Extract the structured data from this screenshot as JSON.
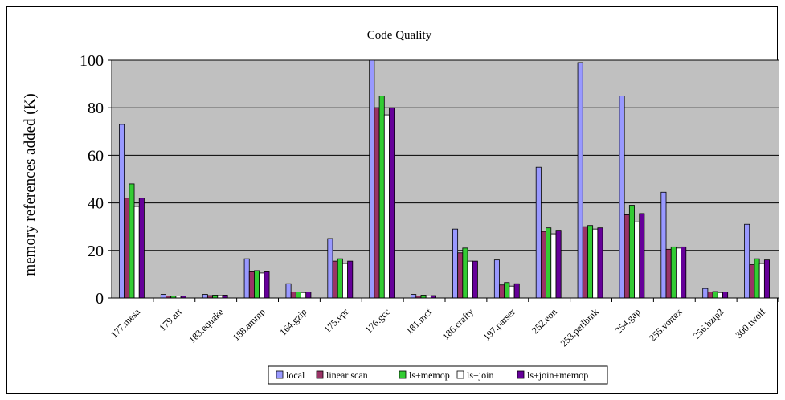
{
  "chart_data": {
    "type": "bar",
    "title": "Code Quality",
    "xlabel": "",
    "ylabel": "memory references added (K)",
    "ylim": [
      0,
      100
    ],
    "yticks": [
      0,
      20,
      40,
      60,
      80,
      100
    ],
    "grid": "horizontal",
    "legend_position": "bottom",
    "categories": [
      "177.mesa",
      "179.art",
      "183.equake",
      "188.ammp",
      "164.gzip",
      "175.vpr",
      "176.gcc",
      "181.mcf",
      "186.crafty",
      "197.parser",
      "252.eon",
      "253.perlbmk",
      "254.gap",
      "255.vortex",
      "256.bzip2",
      "300.twolf"
    ],
    "series": [
      {
        "name": "local",
        "color": "#9999FF",
        "values": [
          73,
          1.5,
          1.5,
          16.5,
          6,
          25,
          101,
          1.5,
          29,
          16,
          55,
          99,
          85,
          44.5,
          4,
          31
        ]
      },
      {
        "name": "linear scan",
        "color": "#993366",
        "values": [
          42,
          0.8,
          1,
          11,
          2.5,
          15.5,
          80,
          0.8,
          19,
          5.5,
          28,
          30,
          35,
          20.5,
          2.5,
          14
        ]
      },
      {
        "name": "ls+memop",
        "color": "#33CC33",
        "values": [
          48,
          0.8,
          1.2,
          11.5,
          2.5,
          16.5,
          85,
          1.2,
          21,
          6.5,
          29.5,
          30.5,
          39,
          21.5,
          2.7,
          16.5
        ]
      },
      {
        "name": "ls+join",
        "color": "#FFFFFF",
        "values": [
          38.5,
          0.8,
          1,
          10.5,
          2.3,
          14.5,
          77,
          0.8,
          15.5,
          5,
          27,
          29,
          32,
          21,
          2.3,
          14.5
        ]
      },
      {
        "name": "ls+join+memop",
        "color": "#660099",
        "values": [
          42,
          0.8,
          1.2,
          11,
          2.5,
          15.5,
          80,
          1,
          15.5,
          6,
          28.5,
          29.5,
          35.5,
          21.5,
          2.5,
          16
        ]
      }
    ]
  }
}
